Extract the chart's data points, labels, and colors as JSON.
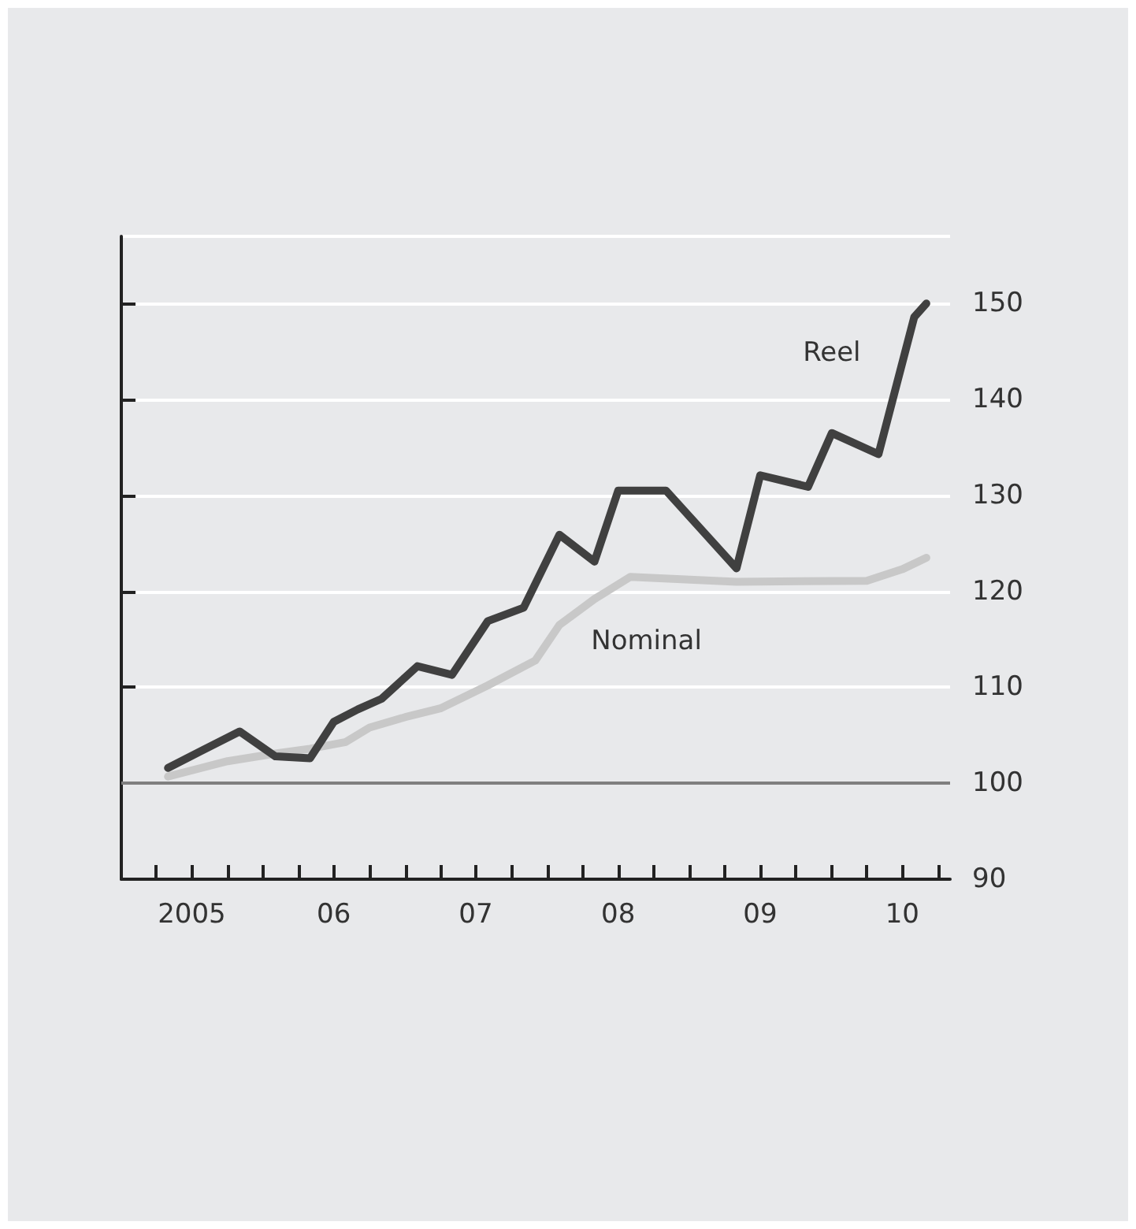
{
  "chart_data": {
    "type": "line",
    "marker": "none",
    "line_style": "solid",
    "grid": "y",
    "legend": false,
    "xlim": [
      "2005-01",
      "2010-11"
    ],
    "ylim": [
      90,
      157
    ],
    "yticks": [
      90,
      100,
      110,
      120,
      130,
      140,
      150
    ],
    "xticks": [
      {
        "value": "2005-01",
        "label": null
      },
      {
        "value": "2005-04",
        "label": null
      },
      {
        "value": "2005-07",
        "label": "2005"
      },
      {
        "value": "2005-10",
        "label": null
      },
      {
        "value": "2006-01",
        "label": null
      },
      {
        "value": "2006-04",
        "label": null
      },
      {
        "value": "2006-07",
        "label": "06"
      },
      {
        "value": "2006-10",
        "label": null
      },
      {
        "value": "2007-01",
        "label": null
      },
      {
        "value": "2007-04",
        "label": null
      },
      {
        "value": "2007-07",
        "label": "07"
      },
      {
        "value": "2007-10",
        "label": null
      },
      {
        "value": "2008-01",
        "label": null
      },
      {
        "value": "2008-04",
        "label": null
      },
      {
        "value": "2008-07",
        "label": "08"
      },
      {
        "value": "2008-10",
        "label": null
      },
      {
        "value": "2009-01",
        "label": null
      },
      {
        "value": "2009-04",
        "label": null
      },
      {
        "value": "2009-07",
        "label": "09"
      },
      {
        "value": "2009-10",
        "label": null
      },
      {
        "value": "2010-01",
        "label": null
      },
      {
        "value": "2010-04",
        "label": null
      },
      {
        "value": "2010-07",
        "label": "10"
      },
      {
        "value": "2010-10",
        "label": null
      }
    ],
    "ref_lines": [
      {
        "axis": "y",
        "value": 100,
        "color": "#7f7f7f"
      }
    ],
    "series": [
      {
        "name": "Reel",
        "color": "#404040",
        "x": [
          "2005-05",
          "2005-11",
          "2006-02",
          "2006-05",
          "2006-07",
          "2006-09",
          "2006-11",
          "2007-02",
          "2007-05",
          "2007-08",
          "2007-11",
          "2008-02",
          "2008-05",
          "2008-07",
          "2008-11",
          "2009-05",
          "2009-07",
          "2009-11",
          "2010-01",
          "2010-05",
          "2010-08",
          "2010-09"
        ],
        "values": [
          101.6,
          105.4,
          102.8,
          102.6,
          106.4,
          107.7,
          108.8,
          112.2,
          111.3,
          116.9,
          118.3,
          125.9,
          123.1,
          130.5,
          130.5,
          122.4,
          132.1,
          130.9,
          136.5,
          134.3,
          148.6,
          150
        ]
      },
      {
        "name": "Nominal",
        "color": "#c8c8c8",
        "x": [
          "2005-05",
          "2005-10",
          "2006-02",
          "2006-05",
          "2006-08",
          "2006-10",
          "2007-01",
          "2007-04",
          "2007-08",
          "2007-12",
          "2008-02",
          "2008-05",
          "2008-08",
          "2009-05",
          "2010-04",
          "2010-07",
          "2010-09"
        ],
        "values": [
          100.7,
          102.3,
          103.1,
          103.6,
          104.3,
          105.8,
          106.9,
          107.8,
          110.2,
          112.8,
          116.5,
          119.2,
          121.5,
          121.0,
          121.1,
          122.3,
          123.5
        ]
      }
    ]
  }
}
